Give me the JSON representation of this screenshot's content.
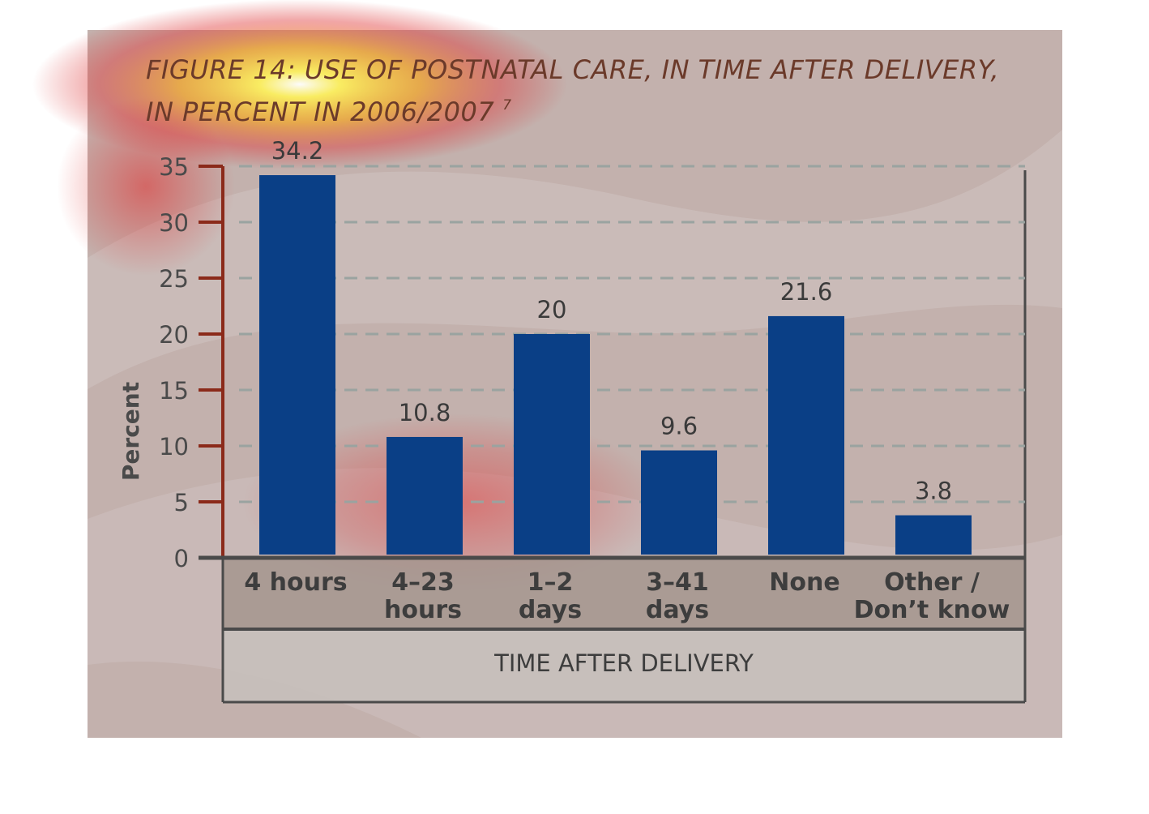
{
  "chart_data": {
    "type": "bar",
    "title_line1": "FIGURE 14: USE OF POSTNATAL CARE, IN TIME AFTER DELIVERY,",
    "title_line2": "IN PERCENT IN 2006/2007",
    "title_footnote": "7",
    "ylabel": "Percent",
    "xlabel": "TIME AFTER DELIVERY",
    "ylim": [
      0,
      35
    ],
    "yticks": [
      "0",
      "5",
      "10",
      "15",
      "20",
      "25",
      "30",
      "35"
    ],
    "categories": [
      [
        "4 hours"
      ],
      [
        "4–23",
        "hours"
      ],
      [
        "1–2",
        "days"
      ],
      [
        "3–41",
        "days"
      ],
      [
        "None"
      ],
      [
        "Other /",
        "Don’t know"
      ]
    ],
    "values": [
      34.2,
      10.8,
      20,
      9.6,
      21.6,
      3.8
    ],
    "value_labels": [
      "34.2",
      "10.8",
      "20",
      "9.6",
      "21.6",
      "3.8"
    ],
    "grid": true,
    "colors": {
      "bar": "#0a3f86",
      "background": "#c3b1ad",
      "title": "#6b3a2a",
      "axis_tick": "#8b2a1a",
      "frame": "#4a4a4a",
      "category_band": "#a4958e",
      "xlabel_band": "#c6c0bb"
    }
  }
}
